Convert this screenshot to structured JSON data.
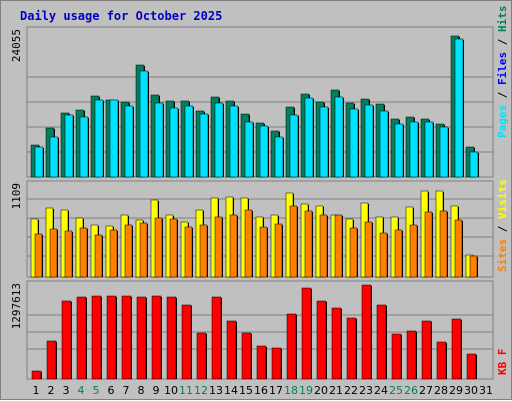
{
  "chart_data": {
    "type": "bar",
    "title": "Daily usage for October 2025",
    "categories": [
      "1",
      "2",
      "3",
      "4",
      "5",
      "6",
      "7",
      "8",
      "9",
      "10",
      "11",
      "12",
      "13",
      "14",
      "15",
      "16",
      "17",
      "18",
      "19",
      "20",
      "21",
      "22",
      "23",
      "24",
      "25",
      "26",
      "27",
      "28",
      "29",
      "30",
      "31"
    ],
    "weekend_days": [
      "4",
      "5",
      "11",
      "12",
      "18",
      "19",
      "25",
      "26"
    ],
    "panels": [
      {
        "id": "hits_files_pages",
        "max_label": "24055",
        "ymax": 24055,
        "series": [
          {
            "name": "Hits",
            "color": "#00805c",
            "values": [
              5500,
              8300,
              10900,
              11300,
              13700,
              13100,
              12700,
              18900,
              13900,
              12800,
              12900,
              11200,
              13600,
              12900,
              10600,
              9100,
              7800,
              11800,
              14000,
              12700,
              14700,
              12600,
              13200,
              12400,
              9900,
              10100,
              9900,
              9000,
              23900,
              5000,
              0
            ]
          },
          {
            "name": "Files",
            "color": "#0000ff",
            "values": [
              0,
              0,
              0,
              0,
              0,
              0,
              0,
              0,
              0,
              0,
              0,
              0,
              0,
              0,
              0,
              0,
              0,
              0,
              0,
              0,
              0,
              0,
              0,
              0,
              0,
              0,
              0,
              0,
              0,
              0,
              0
            ]
          },
          {
            "name": "Pages",
            "color": "#00e0ff",
            "values": [
              5000,
              6800,
              10500,
              10200,
              13000,
              13100,
              12100,
              17900,
              12600,
              11700,
              12000,
              10600,
              12600,
              12000,
              9300,
              8600,
              6700,
              10500,
              13400,
              11900,
              13500,
              11600,
              12200,
              11200,
              9000,
              9400,
              9400,
              8400,
              23300,
              4200,
              0
            ]
          }
        ]
      },
      {
        "id": "visits_sites",
        "max_label": "1109",
        "ymax": 1109,
        "series": [
          {
            "name": "Visits",
            "color": "#ffff00",
            "values": [
              730,
              870,
              850,
              740,
              650,
              640,
              780,
              720,
              970,
              780,
              690,
              850,
              1000,
              1010,
              990,
              760,
              780,
              1060,
              920,
              890,
              780,
              730,
              930,
              750,
              750,
              880,
              1080,
              1080,
              890,
              280,
              0
            ]
          },
          {
            "name": "Sites",
            "color": "#ff8000",
            "values": [
              540,
              600,
              580,
              620,
              530,
              590,
              660,
              680,
              740,
              730,
              630,
              660,
              760,
              780,
              850,
              630,
              670,
              890,
              830,
              780,
              780,
              620,
              690,
              560,
              590,
              660,
              820,
              830,
              720,
              260,
              0
            ]
          }
        ]
      },
      {
        "id": "kbytes",
        "max_label": "1297613",
        "ymax": 1297613,
        "series": [
          {
            "name": "KB F",
            "color": "#ff0000",
            "values": [
              120000,
              550000,
              1120000,
              1180000,
              1190000,
              1190000,
              1190000,
              1180000,
              1190000,
              1180000,
              1060000,
              660000,
              1180000,
              840000,
              660000,
              470000,
              450000,
              930000,
              1310000,
              1130000,
              1030000,
              880000,
              1360000,
              1060000,
              650000,
              690000,
              840000,
              530000,
              870000,
              360000,
              0
            ]
          }
        ]
      }
    ],
    "legend": {
      "hits_files_pages": [
        "Pages",
        "Files",
        "Hits"
      ],
      "visits_sites": [
        "Sites",
        "Visits"
      ],
      "kbytes": [
        "KB F"
      ]
    },
    "grid": true
  }
}
